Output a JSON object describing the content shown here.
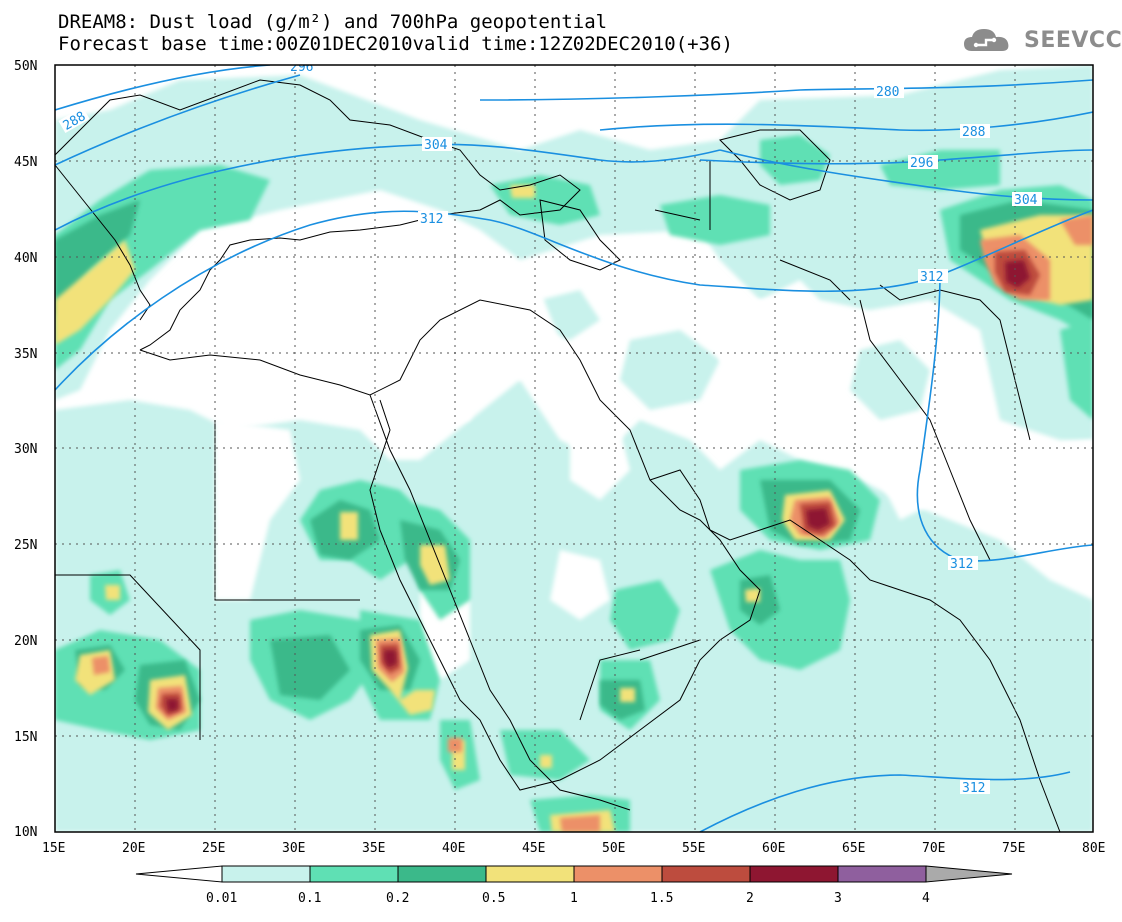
{
  "header": {
    "title_line1": "DREAM8: Dust load (g/m²) and 700hPa geopotential",
    "title_line2": "Forecast base time:00Z01DEC2010valid time:12Z02DEC2010(+36)",
    "logo_text": "SEEVCCC"
  },
  "axes": {
    "lat_labels": [
      "50N",
      "45N",
      "40N",
      "35N",
      "30N",
      "25N",
      "20N",
      "15N",
      "10N"
    ],
    "lon_labels": [
      "15E",
      "20E",
      "25E",
      "30E",
      "35E",
      "40E",
      "45E",
      "50E",
      "55E",
      "60E",
      "65E",
      "70E",
      "75E",
      "80E"
    ]
  },
  "contour_labels": [
    "296",
    "288",
    "304",
    "312",
    "280",
    "288",
    "296",
    "304",
    "312",
    "312",
    "312"
  ],
  "colorbar": {
    "tick_labels": [
      "0.01",
      "0.1",
      "0.2",
      "0.5",
      "1",
      "1.5",
      "2",
      "3",
      "4"
    ],
    "colors": [
      "#c8f2ec",
      "#5fe0b4",
      "#3bb98a",
      "#f2e27a",
      "#ec9068",
      "#bd4c3e",
      "#8e1631",
      "#8f5f9e",
      "#aaaaaa"
    ]
  },
  "colors": {
    "geopotential_contour": "#1a8fe0",
    "dust_0.01": "#c8f2ec",
    "dust_0.1": "#5fe0b4",
    "dust_0.2": "#3bb98a",
    "dust_0.5": "#f2e27a",
    "dust_1": "#ec9068",
    "dust_1.5": "#bd4c3e",
    "dust_2": "#8e1631"
  }
}
